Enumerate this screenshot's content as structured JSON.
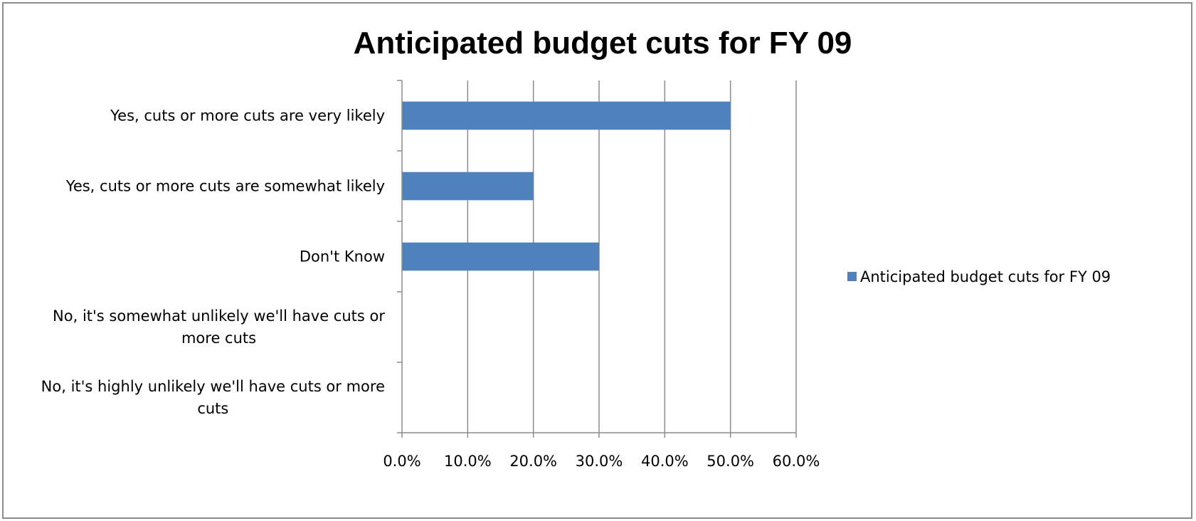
{
  "chart_data": {
    "type": "bar",
    "orientation": "horizontal",
    "title": "Anticipated budget cuts for FY 09",
    "categories": [
      "Yes, cuts or more cuts are very likely",
      "Yes, cuts or more cuts are somewhat likely",
      "Don't Know",
      "No, it's somewhat unlikely we'll have cuts or more cuts",
      "No, it's highly unlikely we'll have cuts or more cuts"
    ],
    "series": [
      {
        "name": "Anticipated budget cuts for FY 09",
        "color": "#4f81bd",
        "values": [
          0.5,
          0.2,
          0.3,
          0,
          0
        ]
      }
    ],
    "xlim": [
      0,
      0.6
    ],
    "xticks": [
      "0.0%",
      "10.0%",
      "20.0%",
      "30.0%",
      "40.0%",
      "50.0%",
      "60.0%"
    ],
    "xlabel": "",
    "ylabel": "",
    "grid": "vertical",
    "legend": "right"
  }
}
